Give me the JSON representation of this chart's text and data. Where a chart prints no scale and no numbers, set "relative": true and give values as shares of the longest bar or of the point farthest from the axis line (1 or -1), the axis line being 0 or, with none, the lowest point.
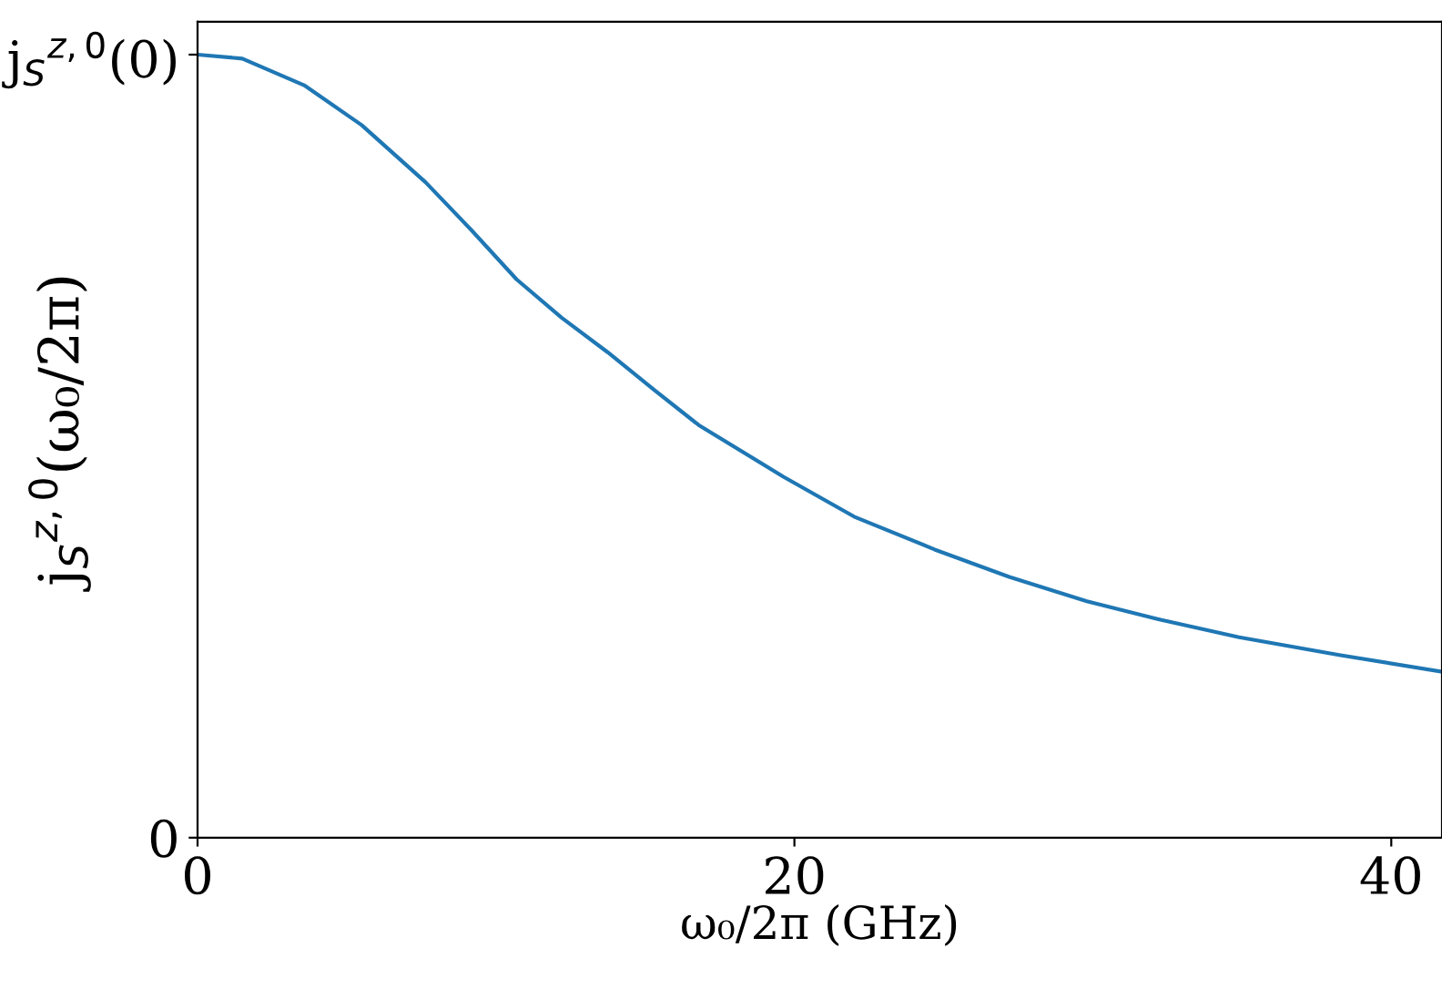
{
  "chart_data": {
    "type": "line",
    "xlabel": "ω₀/2π (GHz)",
    "ylabel": "j$_{S}$$^{z,0}$(ω₀/2π)",
    "series": [
      {
        "color": "#1f77b4",
        "x": [
          0,
          1.5,
          3.57,
          5.5,
          7.64,
          9.2,
          10.69,
          12.2,
          13.74,
          15.3,
          16.79,
          19.63,
          22,
          24.7,
          27.2,
          29.8,
          32.3,
          34.9,
          38.3,
          41.7
        ],
        "values": [
          1.0,
          0.995,
          0.961,
          0.91,
          0.837,
          0.775,
          0.713,
          0.664,
          0.62,
          0.572,
          0.527,
          0.461,
          0.41,
          0.368,
          0.333,
          0.302,
          0.278,
          0.256,
          0.233,
          0.212
        ]
      }
    ],
    "xlim": [
      0,
      41.7
    ],
    "xticks": [
      0,
      20,
      40
    ],
    "relative": true,
    "annotations": [
      "0",
      "j$_{S}$$^{z,0}$(0)"
    ],
    "grid": false,
    "marker": "none",
    "line_style": "solid"
  }
}
